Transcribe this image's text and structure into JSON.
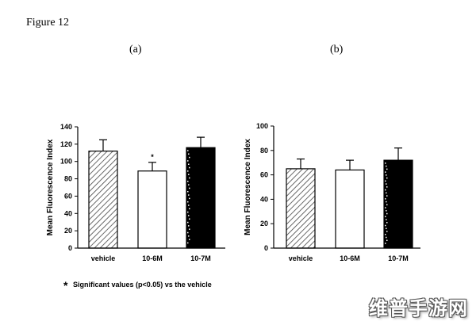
{
  "figure_title": "Figure 12",
  "footnote": {
    "marker": "*",
    "text": "Significant values (p<0.05) vs the vehicle"
  },
  "watermark": "维普手游网",
  "chart_data": [
    {
      "panel_label": "(a)",
      "type": "bar",
      "ylabel": "Mean Fluorescence Index",
      "categories": [
        "vehicle",
        "10-6M",
        "10-7M"
      ],
      "values": [
        112,
        89,
        116
      ],
      "errors": [
        13,
        10,
        12
      ],
      "fills": [
        "hatched",
        "white",
        "black"
      ],
      "annotations": [
        {
          "category": "10-6M",
          "text": "*"
        }
      ],
      "ylim": [
        0,
        140
      ],
      "yticks": [
        0,
        20,
        40,
        60,
        80,
        100,
        120,
        140
      ]
    },
    {
      "panel_label": "(b)",
      "type": "bar",
      "ylabel": "Mean Fluorescence Index",
      "categories": [
        "vehicle",
        "10-6M",
        "10-7M"
      ],
      "values": [
        65,
        64,
        72
      ],
      "errors": [
        8,
        8,
        10
      ],
      "fills": [
        "hatched",
        "white",
        "black"
      ],
      "annotations": [],
      "ylim": [
        0,
        100
      ],
      "yticks": [
        0,
        20,
        40,
        60,
        80,
        100
      ]
    }
  ]
}
